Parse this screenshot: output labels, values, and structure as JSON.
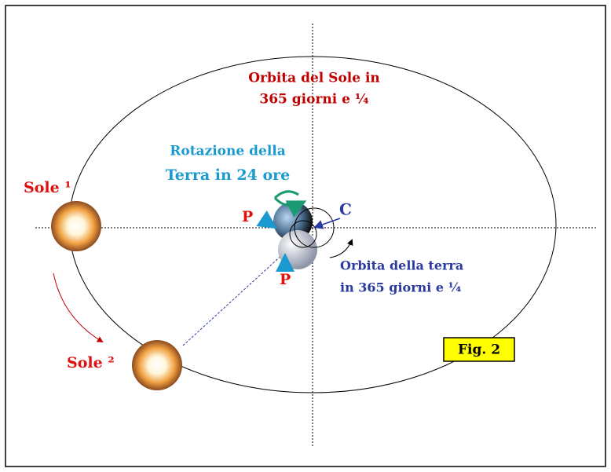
{
  "labels": {
    "sun_orbit": [
      "Orbita del Sole in",
      "365 giorni e ¼"
    ],
    "rotation": [
      "Rotazione della",
      "Terra in 24 ore"
    ],
    "sun1": "Sole ¹",
    "sun2": "Sole ²",
    "p_top": "P",
    "p_bottom": "P",
    "center": "C",
    "earth_orbit": [
      "Orbita della terra",
      "in 365 giorni e ¼"
    ],
    "figure": "Fig. 2"
  }
}
